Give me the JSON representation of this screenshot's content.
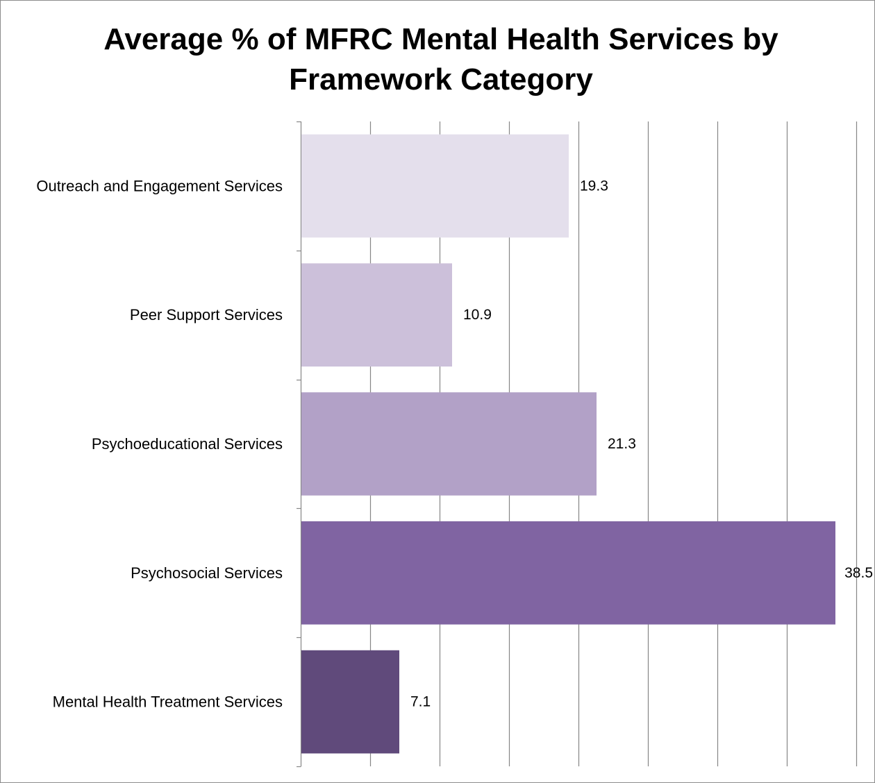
{
  "chart_data": {
    "type": "bar",
    "orientation": "horizontal",
    "title_lines": [
      "Average % of MFRC Mental Health Services by",
      "Framework Category"
    ],
    "categories": [
      "Outreach and Engagement Services",
      "Peer Support Services",
      "Psychoeducational Services",
      "Psychosocial Services",
      "Mental Health Treatment Services"
    ],
    "values": [
      19.3,
      10.9,
      21.3,
      38.5,
      7.1
    ],
    "value_labels": [
      "19.3",
      "10.9",
      "21.3",
      "38.5",
      "7.1"
    ],
    "bar_colors": [
      "#e4dfec",
      "#ccc0da",
      "#b2a1c7",
      "#8064a2",
      "#604a7b"
    ],
    "xlim": [
      0,
      40
    ],
    "x_gridline_step": 5,
    "grid": true,
    "xlabel": "",
    "ylabel": "",
    "gridline_color": "#868686"
  }
}
